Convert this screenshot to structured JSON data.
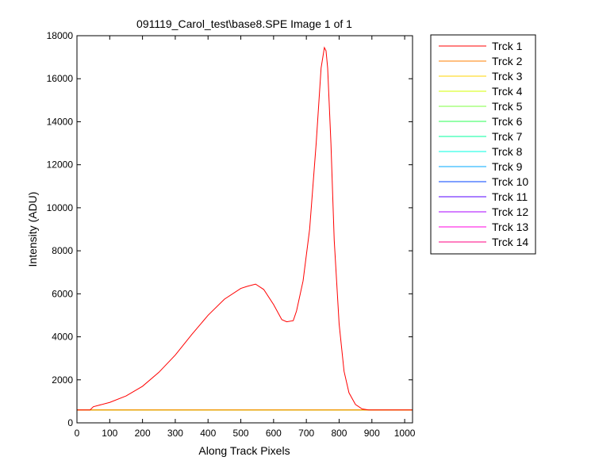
{
  "chart_data": {
    "type": "line",
    "title": "091119_Carol_test\\base8.SPE  Image 1 of 1",
    "xlabel": "Along Track Pixels",
    "ylabel": "Intensity (ADU)",
    "xlim": [
      0,
      1024
    ],
    "ylim": [
      0,
      18000
    ],
    "xticks": [
      0,
      100,
      200,
      300,
      400,
      500,
      600,
      700,
      800,
      900,
      1000
    ],
    "yticks": [
      0,
      2000,
      4000,
      6000,
      8000,
      10000,
      12000,
      14000,
      16000,
      18000
    ],
    "grid": false,
    "legend_position": "outside-right",
    "series": [
      {
        "name": "Trck 1",
        "color": "#ff0000",
        "x": [
          0,
          40,
          50,
          100,
          150,
          200,
          250,
          300,
          350,
          400,
          450,
          500,
          520,
          545,
          570,
          600,
          625,
          640,
          660,
          670,
          690,
          710,
          730,
          745,
          755,
          760,
          765,
          775,
          785,
          800,
          815,
          830,
          850,
          870,
          890,
          900,
          950,
          1024
        ],
        "y": [
          600,
          600,
          750,
          950,
          1250,
          1700,
          2350,
          3150,
          4100,
          5000,
          5750,
          6250,
          6350,
          6450,
          6200,
          5500,
          4800,
          4700,
          4750,
          5200,
          6600,
          9000,
          13000,
          16500,
          17450,
          17300,
          16500,
          13000,
          8500,
          4600,
          2400,
          1400,
          850,
          650,
          600,
          600,
          600,
          600
        ]
      },
      {
        "name": "Trck 2",
        "color": "#ff7f00",
        "x": [
          0,
          1024
        ],
        "y": [
          600,
          600
        ]
      },
      {
        "name": "Trck 3",
        "color": "#ffd400",
        "x": [
          0,
          1024
        ],
        "y": [
          600,
          600
        ]
      },
      {
        "name": "Trck 4",
        "color": "#d4ff00",
        "x": [
          0,
          1024
        ],
        "y": [
          600,
          600
        ]
      },
      {
        "name": "Trck 5",
        "color": "#7fff40",
        "x": [
          0,
          1024
        ],
        "y": [
          600,
          600
        ]
      },
      {
        "name": "Trck 6",
        "color": "#2aff55",
        "x": [
          0,
          1024
        ],
        "y": [
          600,
          600
        ]
      },
      {
        "name": "Trck 7",
        "color": "#00ff9f",
        "x": [
          0,
          1024
        ],
        "y": [
          600,
          600
        ]
      },
      {
        "name": "Trck 8",
        "color": "#00ffe0",
        "x": [
          0,
          1024
        ],
        "y": [
          600,
          600
        ]
      },
      {
        "name": "Trck 9",
        "color": "#00aaff",
        "x": [
          0,
          1024
        ],
        "y": [
          600,
          600
        ]
      },
      {
        "name": "Trck 10",
        "color": "#0040ff",
        "x": [
          0,
          1024
        ],
        "y": [
          600,
          600
        ]
      },
      {
        "name": "Trck 11",
        "color": "#5500ff",
        "x": [
          0,
          1024
        ],
        "y": [
          600,
          600
        ]
      },
      {
        "name": "Trck 12",
        "color": "#aa00ff",
        "x": [
          0,
          1024
        ],
        "y": [
          600,
          600
        ]
      },
      {
        "name": "Trck 13",
        "color": "#ff00e0",
        "x": [
          0,
          1024
        ],
        "y": [
          600,
          600
        ]
      },
      {
        "name": "Trck 14",
        "color": "#ff0080",
        "x": [
          0,
          1024
        ],
        "y": [
          600,
          600
        ]
      }
    ]
  }
}
